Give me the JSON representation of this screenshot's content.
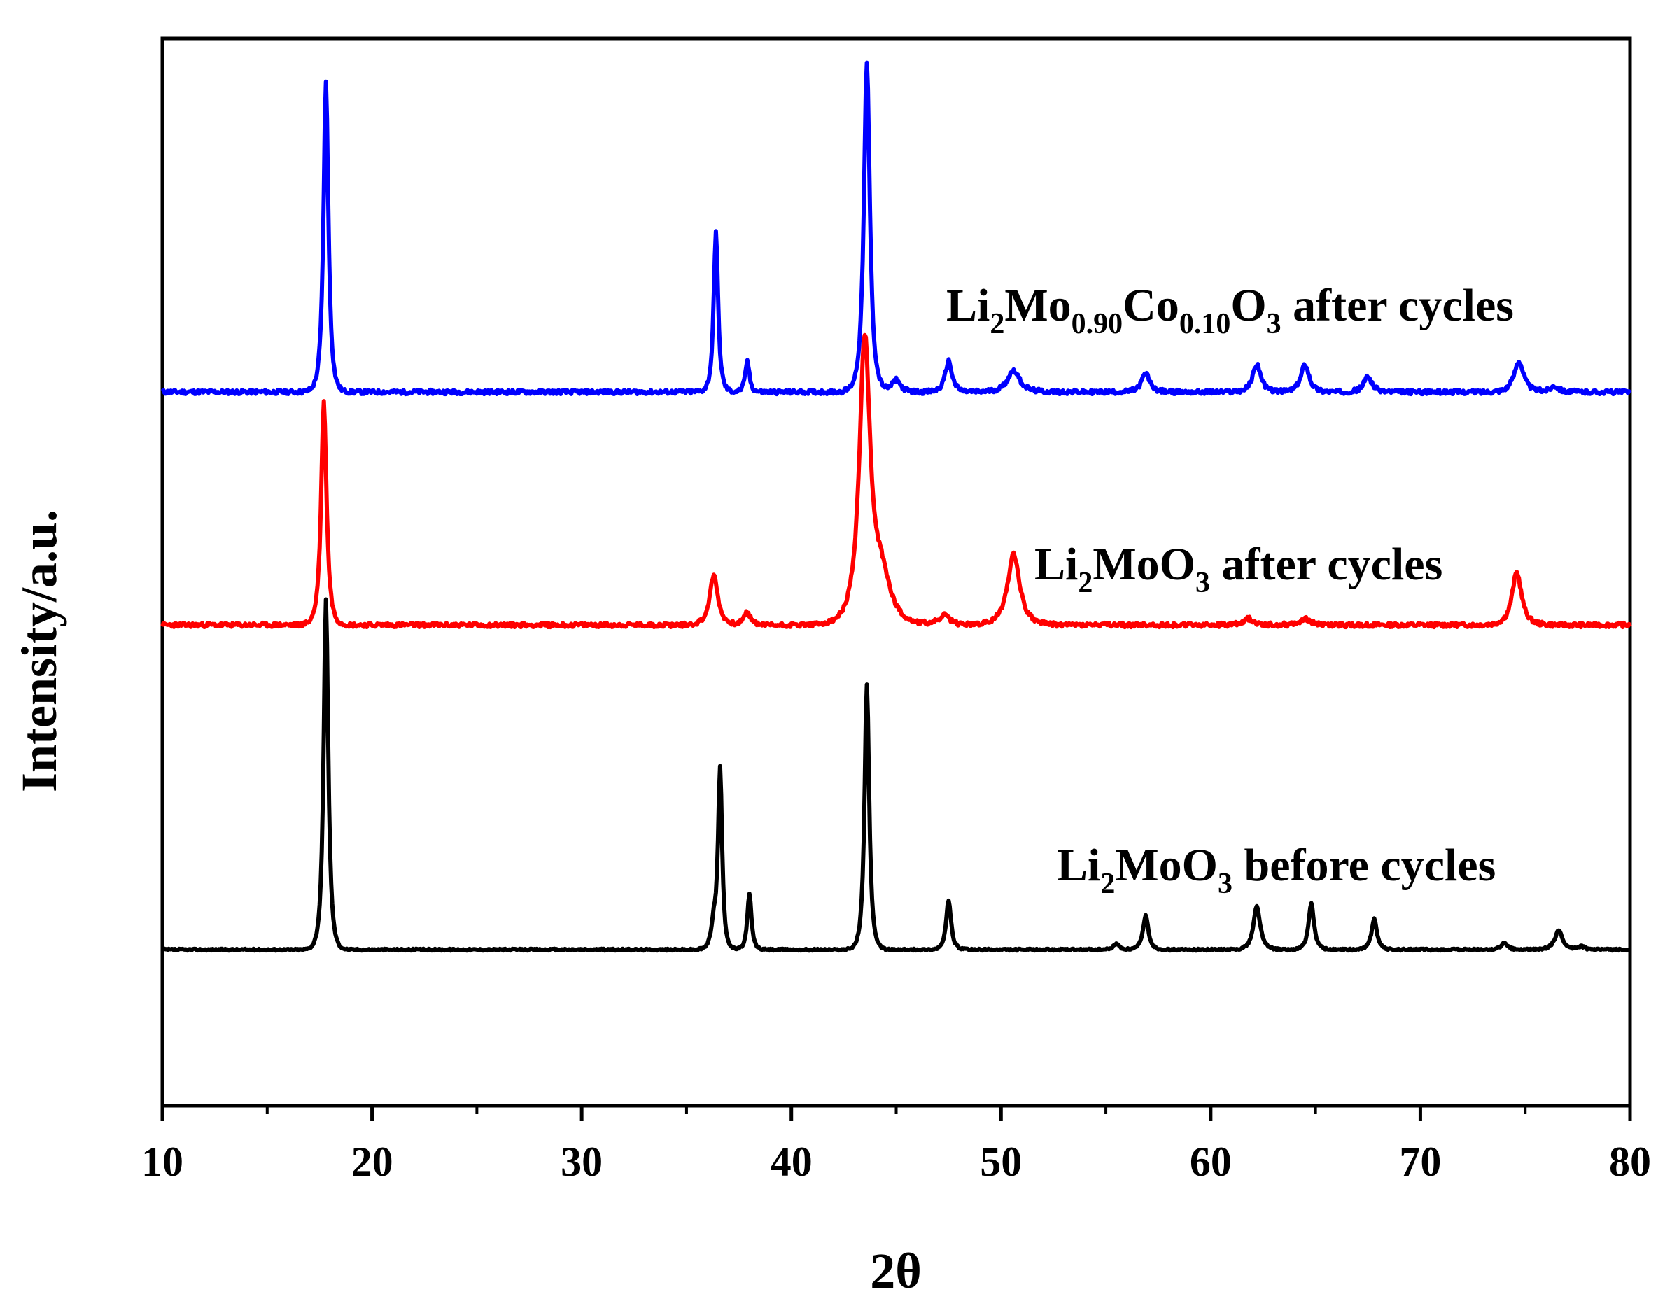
{
  "chart_data": {
    "type": "line",
    "xlabel": "2θ",
    "ylabel": "Intensity/a.u.",
    "xlim": [
      10,
      80
    ],
    "xticks": [
      "10",
      "20",
      "30",
      "40",
      "50",
      "60",
      "70",
      "80"
    ],
    "y_ticks_shown": false,
    "grid": false,
    "colors": {
      "Li2Mo0.90Co0.10O3": "#0000ff",
      "Li2MoO3_after": "#ff0000",
      "Li2MoO3_before": "#000000"
    },
    "labels": {
      "blue": {
        "p1": "Li",
        "s1": "2",
        "p2": "Mo",
        "s2": "0.90",
        "p3": "Co",
        "s3": "0.10",
        "p4": "O",
        "s4": "3",
        "p5": " after cycles"
      },
      "red": {
        "p1": "Li",
        "s1": "2",
        "p2": "MoO",
        "s2": "3",
        "p3": " after cycles"
      },
      "black": {
        "p1": "Li",
        "s1": "2",
        "p2": "MoO",
        "s2": "3",
        "p3": " before cycles"
      }
    },
    "series": [
      {
        "name": "Li2Mo0.90Co0.10O3 after cycles",
        "color": "#0000ff",
        "baseline": 0.0,
        "peaks": [
          [
            17.8,
            1.0,
            0.18
          ],
          [
            36.4,
            0.52,
            0.16
          ],
          [
            37.9,
            0.1,
            0.15
          ],
          [
            43.6,
            1.06,
            0.22
          ],
          [
            45.0,
            0.04,
            0.3
          ],
          [
            47.5,
            0.1,
            0.25
          ],
          [
            50.6,
            0.07,
            0.45
          ],
          [
            56.9,
            0.06,
            0.3
          ],
          [
            62.2,
            0.09,
            0.3
          ],
          [
            64.5,
            0.09,
            0.3
          ],
          [
            67.5,
            0.05,
            0.3
          ],
          [
            74.7,
            0.1,
            0.35
          ],
          [
            76.4,
            0.02,
            0.3
          ]
        ]
      },
      {
        "name": "Li2MoO3 after cycles",
        "color": "#ff0000",
        "baseline": 0.0,
        "peaks": [
          [
            17.7,
            0.72,
            0.2
          ],
          [
            36.3,
            0.16,
            0.3
          ],
          [
            37.9,
            0.04,
            0.25
          ],
          [
            43.5,
            0.9,
            0.4
          ],
          [
            44.3,
            0.15,
            0.7
          ],
          [
            47.3,
            0.03,
            0.4
          ],
          [
            50.6,
            0.23,
            0.45
          ],
          [
            61.8,
            0.02,
            0.4
          ],
          [
            64.5,
            0.02,
            0.4
          ],
          [
            74.6,
            0.17,
            0.35
          ]
        ]
      },
      {
        "name": "Li2MoO3 before cycles",
        "color": "#000000",
        "baseline": 0.0,
        "peaks": [
          [
            17.8,
            1.13,
            0.17
          ],
          [
            36.3,
            0.08,
            0.2
          ],
          [
            36.6,
            0.58,
            0.15
          ],
          [
            38.0,
            0.18,
            0.15
          ],
          [
            43.6,
            0.86,
            0.17
          ],
          [
            47.5,
            0.16,
            0.18
          ],
          [
            55.5,
            0.02,
            0.2
          ],
          [
            56.9,
            0.11,
            0.2
          ],
          [
            62.2,
            0.14,
            0.25
          ],
          [
            64.8,
            0.15,
            0.2
          ],
          [
            67.8,
            0.1,
            0.2
          ],
          [
            74.0,
            0.02,
            0.25
          ],
          [
            76.6,
            0.06,
            0.3
          ],
          [
            77.7,
            0.01,
            0.2
          ]
        ]
      }
    ]
  }
}
